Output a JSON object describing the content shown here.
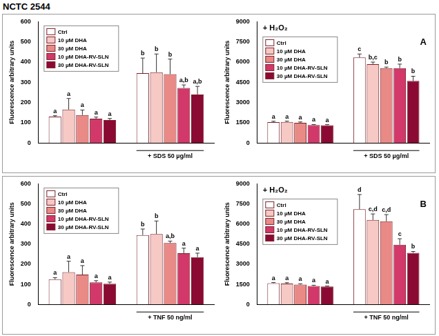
{
  "title": "NCTC 2544",
  "chart_data": [
    {
      "type": "bar",
      "y_label": "Fluorescence arbitrary units",
      "categories": [
        null,
        "+ SDS 50 µg/ml"
      ],
      "ylim": [
        0,
        600
      ],
      "yticks": [
        0,
        100,
        200,
        300,
        400,
        500,
        600
      ],
      "grid": false,
      "legend": "upper left",
      "series": [
        {
          "name": "Ctrl",
          "color": "#ffffff",
          "values": [
            130,
            345
          ],
          "errors": [
            5,
            75
          ],
          "annotations": [
            "a",
            "b"
          ]
        },
        {
          "name": "10 µM DHA",
          "color": "#f6c9c4",
          "values": [
            165,
            350
          ],
          "errors": [
            55,
            90
          ],
          "annotations": [
            "a",
            "b"
          ]
        },
        {
          "name": "30 µM DHA",
          "color": "#e98a86",
          "values": [
            138,
            340
          ],
          "errors": [
            25,
            75
          ],
          "annotations": [
            "a",
            "b"
          ]
        },
        {
          "name": "10 µM DHA-RV-SLN",
          "color": "#d2386a",
          "values": [
            120,
            272
          ],
          "errors": [
            8,
            15
          ],
          "annotations": [
            "a",
            "a,b"
          ]
        },
        {
          "name": "30 µM DHA-RV-SLN",
          "color": "#8a0a33",
          "values": [
            113,
            240
          ],
          "errors": [
            8,
            40
          ],
          "annotations": [
            "a",
            "a,b"
          ]
        }
      ]
    },
    {
      "type": "bar",
      "title": "+ H₂O₂",
      "panel": "A",
      "y_label": "Fluorescence arbitrary units",
      "categories": [
        null,
        "+ SDS 50 µg/ml"
      ],
      "ylim": [
        0,
        9000
      ],
      "yticks": [
        0,
        1500,
        3000,
        4500,
        6000,
        7500,
        9000
      ],
      "grid": false,
      "legend": "upper left",
      "series": [
        {
          "name": "Ctrl",
          "color": "#ffffff",
          "values": [
            1550,
            6350
          ],
          "errors": [
            60,
            250
          ],
          "annotations": [
            "a",
            "c"
          ]
        },
        {
          "name": "10 µM DHA",
          "color": "#f6c9c4",
          "values": [
            1560,
            5850
          ],
          "errors": [
            60,
            150
          ],
          "annotations": [
            "a",
            "b,c"
          ]
        },
        {
          "name": "30 µM DHA",
          "color": "#e98a86",
          "values": [
            1500,
            5550
          ],
          "errors": [
            60,
            80
          ],
          "annotations": [
            "a",
            "b"
          ]
        },
        {
          "name": "10 µM DHA-RV-SLN",
          "color": "#d2386a",
          "values": [
            1330,
            5550
          ],
          "errors": [
            40,
            300
          ],
          "annotations": [
            "a",
            "b"
          ]
        },
        {
          "name": "30 µM DHA-RV-SLN",
          "color": "#8a0a33",
          "values": [
            1320,
            4600
          ],
          "errors": [
            40,
            350
          ],
          "annotations": [
            "a",
            "b"
          ]
        }
      ]
    },
    {
      "type": "bar",
      "y_label": "Fluorescence arbitrary units",
      "categories": [
        null,
        "+ TNF 50 ng/ml"
      ],
      "ylim": [
        0,
        600
      ],
      "yticks": [
        0,
        100,
        200,
        300,
        400,
        500,
        600
      ],
      "grid": false,
      "legend": "upper left",
      "series": [
        {
          "name": "Ctrl",
          "color": "#ffffff",
          "values": [
            125,
            345
          ],
          "errors": [
            8,
            30
          ],
          "annotations": [
            "a",
            "b"
          ]
        },
        {
          "name": "10 µM DHA",
          "color": "#f6c9c4",
          "values": [
            160,
            350
          ],
          "errors": [
            55,
            65
          ],
          "annotations": [
            "a",
            "b"
          ]
        },
        {
          "name": "30 µM DHA",
          "color": "#e98a86",
          "values": [
            148,
            305
          ],
          "errors": [
            45,
            10
          ],
          "annotations": [
            "a",
            "a,b"
          ]
        },
        {
          "name": "10 µM DHA-RV-SLN",
          "color": "#d2386a",
          "values": [
            110,
            255
          ],
          "errors": [
            8,
            25
          ],
          "annotations": [
            "a",
            "a"
          ]
        },
        {
          "name": "30 µM DHA-RV-SLN",
          "color": "#8a0a33",
          "values": [
            103,
            235
          ],
          "errors": [
            8,
            20
          ],
          "annotations": [
            "a",
            "a"
          ]
        }
      ]
    },
    {
      "type": "bar",
      "title": "+ H₂O₂",
      "panel": "B",
      "y_label": "Fluorescence arbitrary units",
      "categories": [
        null,
        "+ TNF 50 ng/ml"
      ],
      "ylim": [
        0,
        9000
      ],
      "yticks": [
        0,
        1500,
        3000,
        4500,
        6000,
        7500,
        9000
      ],
      "grid": false,
      "legend": "upper left",
      "series": [
        {
          "name": "Ctrl",
          "color": "#ffffff",
          "values": [
            1580,
            7100
          ],
          "errors": [
            50,
            1100
          ],
          "annotations": [
            "a",
            "d"
          ]
        },
        {
          "name": "10 µM DHA",
          "color": "#f6c9c4",
          "values": [
            1560,
            6300
          ],
          "errors": [
            60,
            450
          ],
          "annotations": [
            "a",
            "c,d"
          ]
        },
        {
          "name": "30 µM DHA",
          "color": "#e98a86",
          "values": [
            1480,
            6200
          ],
          "errors": [
            60,
            500
          ],
          "annotations": [
            "a",
            "c,d"
          ]
        },
        {
          "name": "10 µM DHA-RV-SLN",
          "color": "#d2386a",
          "values": [
            1380,
            4450
          ],
          "errors": [
            50,
            450
          ],
          "annotations": [
            "a",
            "c"
          ]
        },
        {
          "name": "30 µM DHA-RV-SLN",
          "color": "#8a0a33",
          "values": [
            1330,
            3850
          ],
          "errors": [
            40,
            100
          ],
          "annotations": [
            "a",
            "b"
          ]
        }
      ]
    }
  ]
}
